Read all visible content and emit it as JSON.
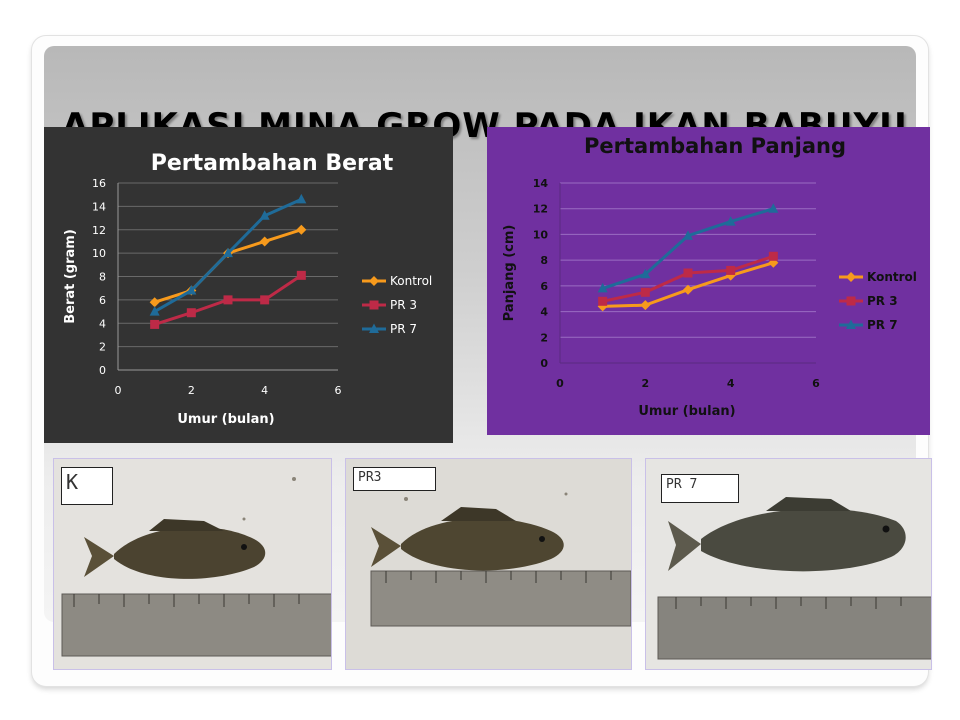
{
  "slide": {
    "title": "APLIKASI MINA GROW PADA IKAN BABUYU"
  },
  "charts": {
    "weight": {
      "title": "Pertambahan Berat",
      "ylabel": "Berat (gram)",
      "xlabel": "Umur (bulan)",
      "legend": [
        "Kontrol",
        "PR 3",
        "PR 7"
      ]
    },
    "length": {
      "title": "Pertambahan Panjang",
      "ylabel": "Panjang (cm)",
      "xlabel": "Umur (bulan)",
      "legend": [
        "Kontrol",
        "PR 3",
        "PR 7"
      ]
    }
  },
  "photos": [
    {
      "label": "K"
    },
    {
      "label": "PR3"
    },
    {
      "label": "PR 7"
    }
  ],
  "colors": {
    "weight_bg": "#333333",
    "length_bg": "#7030a0",
    "kontrol": "#f79a1c",
    "pr3": "#be2a47",
    "pr7": "#1f6b99"
  },
  "chart_data": [
    {
      "type": "line",
      "title": "Pertambahan Berat",
      "xlabel": "Umur (bulan)",
      "ylabel": "Berat (gram)",
      "xlim": [
        0,
        6
      ],
      "ylim": [
        0,
        16
      ],
      "xticks": [
        0,
        2,
        4,
        6
      ],
      "yticks": [
        0,
        2,
        4,
        6,
        8,
        10,
        12,
        14,
        16
      ],
      "grid": true,
      "legend_position": "right",
      "series": [
        {
          "name": "Kontrol",
          "x": [
            1,
            2,
            3,
            4,
            5
          ],
          "y": [
            5.8,
            6.8,
            10.0,
            11.0,
            12.0
          ]
        },
        {
          "name": "PR 3",
          "x": [
            1,
            2,
            3,
            4,
            5
          ],
          "y": [
            3.9,
            4.9,
            6.0,
            6.0,
            8.1
          ]
        },
        {
          "name": "PR 7",
          "x": [
            1,
            2,
            3,
            4,
            5
          ],
          "y": [
            5.0,
            6.8,
            10.0,
            13.2,
            14.6
          ]
        }
      ]
    },
    {
      "type": "line",
      "title": "Pertambahan Panjang",
      "xlabel": "Umur (bulan)",
      "ylabel": "Panjang (cm)",
      "xlim": [
        0,
        6
      ],
      "ylim": [
        0,
        14
      ],
      "xticks": [
        0,
        2,
        4,
        6
      ],
      "yticks": [
        0,
        2,
        4,
        6,
        8,
        10,
        12,
        14
      ],
      "grid": true,
      "legend_position": "right",
      "series": [
        {
          "name": "Kontrol",
          "x": [
            1,
            2,
            3,
            4,
            5
          ],
          "y": [
            4.4,
            4.5,
            5.7,
            6.8,
            7.8
          ]
        },
        {
          "name": "PR 3",
          "x": [
            1,
            2,
            3,
            4,
            5
          ],
          "y": [
            4.8,
            5.5,
            7.0,
            7.2,
            8.3
          ]
        },
        {
          "name": "PR 7",
          "x": [
            1,
            2,
            3,
            4,
            5
          ],
          "y": [
            5.8,
            6.9,
            9.9,
            11.0,
            12.0
          ]
        }
      ]
    }
  ]
}
